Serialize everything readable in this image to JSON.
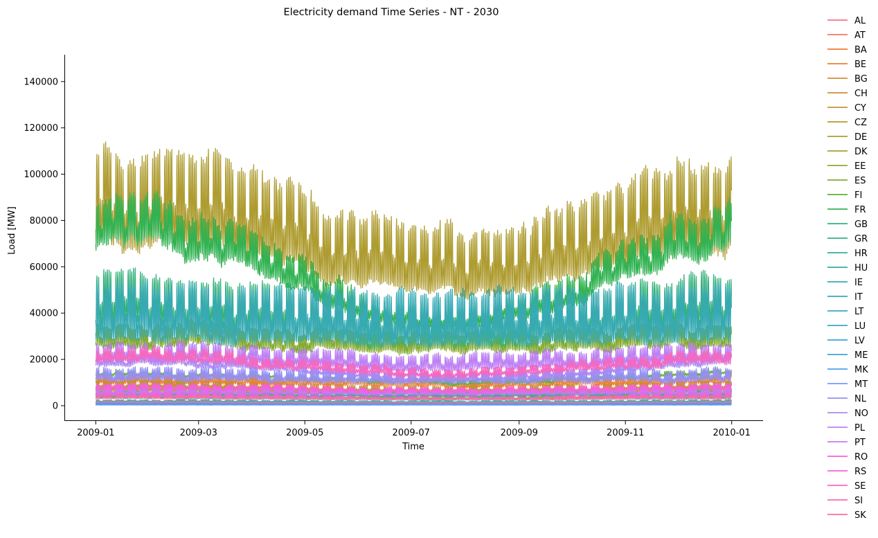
{
  "chart_data": {
    "type": "line",
    "title": "Electricity demand Time Series - NT - 2030",
    "xlabel": "Time",
    "ylabel": "Load [MW]",
    "x_start": "2009-01-01",
    "x_end": "2010-01-01",
    "xlim_days": [
      -18,
      383
    ],
    "ylim": [
      -6600,
      151300
    ],
    "x_ticks": [
      {
        "label": "2009-01",
        "day": 0
      },
      {
        "label": "2009-03",
        "day": 59
      },
      {
        "label": "2009-05",
        "day": 120
      },
      {
        "label": "2009-07",
        "day": 181
      },
      {
        "label": "2009-09",
        "day": 243
      },
      {
        "label": "2009-11",
        "day": 304
      },
      {
        "label": "2010-01",
        "day": 365
      }
    ],
    "y_ticks": [
      0,
      20000,
      40000,
      60000,
      80000,
      100000,
      120000,
      140000
    ],
    "grid": false,
    "legend_placement": "outside-right",
    "series_note": "Hourly load per country, summarised as approximate annual mean (MW), winter seasonal excess fraction and daily/weekly swing fraction",
    "series": [
      {
        "name": "AL",
        "color": "#f77189",
        "mean": 1000,
        "seasonal": 0.15,
        "swing": 0.2
      },
      {
        "name": "AT",
        "color": "#f67466",
        "mean": 8000,
        "seasonal": 0.12,
        "swing": 0.2
      },
      {
        "name": "BA",
        "color": "#f37932",
        "mean": 1500,
        "seasonal": 0.15,
        "swing": 0.2
      },
      {
        "name": "BE",
        "color": "#e68332",
        "mean": 11000,
        "seasonal": 0.1,
        "swing": 0.18
      },
      {
        "name": "BG",
        "color": "#db8932",
        "mean": 4500,
        "seasonal": 0.2,
        "swing": 0.2
      },
      {
        "name": "CH",
        "color": "#d08e32",
        "mean": 7000,
        "seasonal": 0.12,
        "swing": 0.2
      },
      {
        "name": "CY",
        "color": "#c59332",
        "mean": 600,
        "seasonal": 0.05,
        "swing": 0.25
      },
      {
        "name": "CZ",
        "color": "#b99731",
        "mean": 8000,
        "seasonal": 0.12,
        "swing": 0.18
      },
      {
        "name": "DE",
        "color": "#ae9c31",
        "mean": 76000,
        "seasonal": 0.18,
        "swing": 0.22
      },
      {
        "name": "DK",
        "color": "#a2a031",
        "mean": 4000,
        "seasonal": 0.12,
        "swing": 0.25
      },
      {
        "name": "EE",
        "color": "#95a531",
        "mean": 1000,
        "seasonal": 0.15,
        "swing": 0.2
      },
      {
        "name": "ES",
        "color": "#83aa31",
        "mean": 29000,
        "seasonal": 0.05,
        "swing": 0.15
      },
      {
        "name": "FI",
        "color": "#5fb031",
        "mean": 12500,
        "seasonal": 0.15,
        "swing": 0.08
      },
      {
        "name": "FR",
        "color": "#32b252",
        "mean": 58000,
        "seasonal": 0.35,
        "swing": 0.12
      },
      {
        "name": "GB",
        "color": "#33b07a",
        "mean": 40000,
        "seasonal": 0.15,
        "swing": 0.25
      },
      {
        "name": "GR",
        "color": "#34ae8c",
        "mean": 6000,
        "seasonal": 0.05,
        "swing": 0.2
      },
      {
        "name": "HR",
        "color": "#35ad98",
        "mean": 2000,
        "seasonal": 0.1,
        "swing": 0.2
      },
      {
        "name": "HU",
        "color": "#35aca2",
        "mean": 5000,
        "seasonal": 0.08,
        "swing": 0.15
      },
      {
        "name": "IE",
        "color": "#36abab",
        "mean": 3500,
        "seasonal": 0.12,
        "swing": 0.25
      },
      {
        "name": "IT",
        "color": "#37aab4",
        "mean": 39000,
        "seasonal": 0.02,
        "swing": 0.3
      },
      {
        "name": "LT",
        "color": "#38a9bc",
        "mean": 1500,
        "seasonal": 0.1,
        "swing": 0.2
      },
      {
        "name": "LU",
        "color": "#39a8c5",
        "mean": 800,
        "seasonal": 0.05,
        "swing": 0.15
      },
      {
        "name": "LV",
        "color": "#3aa6d0",
        "mean": 900,
        "seasonal": 0.1,
        "swing": 0.2
      },
      {
        "name": "ME",
        "color": "#3ca4dd",
        "mean": 500,
        "seasonal": 0.15,
        "swing": 0.2
      },
      {
        "name": "MK",
        "color": "#48a0f0",
        "mean": 900,
        "seasonal": 0.15,
        "swing": 0.2
      },
      {
        "name": "MT",
        "color": "#7699f4",
        "mean": 300,
        "seasonal": 0.05,
        "swing": 0.25
      },
      {
        "name": "NL",
        "color": "#9490f4",
        "mean": 13000,
        "seasonal": 0.06,
        "swing": 0.2
      },
      {
        "name": "NO",
        "color": "#aa88f4",
        "mean": 16000,
        "seasonal": 0.25,
        "swing": 0.1
      },
      {
        "name": "PL",
        "color": "#bd80f4",
        "mean": 21000,
        "seasonal": 0.1,
        "swing": 0.18
      },
      {
        "name": "PT",
        "color": "#d375f4",
        "mean": 6000,
        "seasonal": 0.06,
        "swing": 0.2
      },
      {
        "name": "RO",
        "color": "#f461dd",
        "mean": 7500,
        "seasonal": 0.1,
        "swing": 0.15
      },
      {
        "name": "RS",
        "color": "#f564d0",
        "mean": 4000,
        "seasonal": 0.2,
        "swing": 0.18
      },
      {
        "name": "SE",
        "color": "#f668bf",
        "mean": 18000,
        "seasonal": 0.2,
        "swing": 0.12
      },
      {
        "name": "SI",
        "color": "#f66cae",
        "mean": 1500,
        "seasonal": 0.08,
        "swing": 0.18
      },
      {
        "name": "SK",
        "color": "#f76f9c",
        "mean": 3300,
        "seasonal": 0.1,
        "swing": 0.15
      }
    ]
  }
}
